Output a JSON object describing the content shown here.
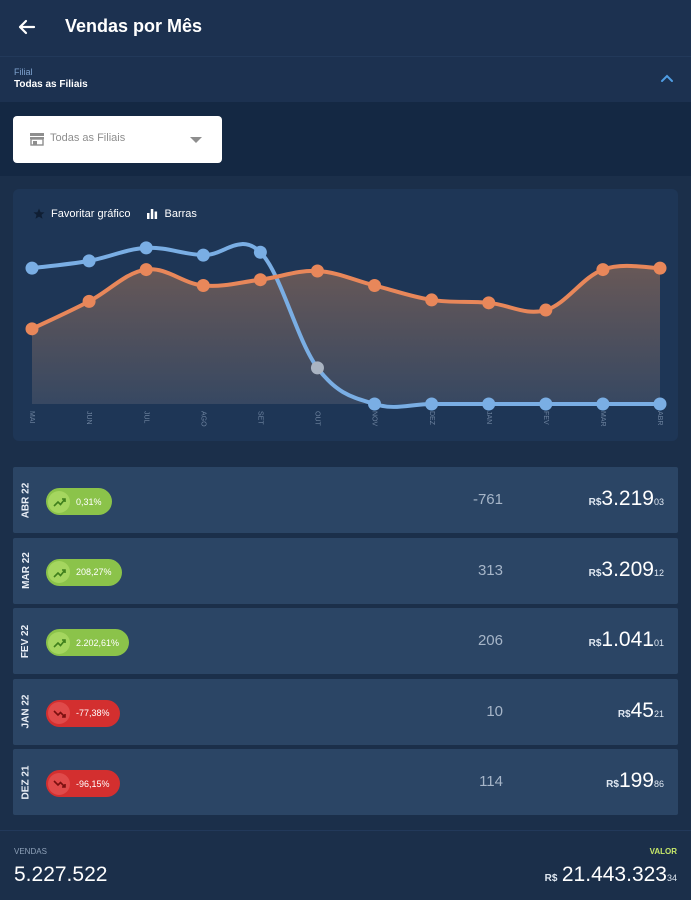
{
  "header": {
    "title": "Vendas por Mês"
  },
  "filter": {
    "caption": "Filial",
    "value": "Todas as Filiais",
    "select_placeholder": "Todas as Filiais"
  },
  "chart_toolbar": {
    "favorite_label": "Favoritar gráfico",
    "bars_label": "Barras"
  },
  "chart_data": {
    "type": "area",
    "categories": [
      "MAI",
      "JUN",
      "JUL",
      "AGO",
      "SET",
      "OUT",
      "NOV",
      "DEZ",
      "JAN",
      "FEV",
      "MAR",
      "ABR"
    ],
    "series": [
      {
        "color": "#e8875a",
        "values": [
          0.52,
          0.71,
          0.93,
          0.82,
          0.86,
          0.92,
          0.82,
          0.72,
          0.7,
          0.65,
          0.93,
          0.94
        ]
      },
      {
        "color": "#7aaee4",
        "values": [
          0.94,
          0.99,
          1.08,
          1.03,
          1.05,
          0.25,
          0.0,
          0.0,
          0.0,
          0.0,
          0.0,
          0.0
        ]
      }
    ],
    "area_color_top": "#6c5a57",
    "area_color_bottom": "#3a4a63",
    "grid": false
  },
  "rows": [
    {
      "month": "ABR 22",
      "trend": "up",
      "pct": "0,31%",
      "qty": "-761",
      "currency": "R$",
      "value": "3.219",
      "cents": "03"
    },
    {
      "month": "MAR 22",
      "trend": "up",
      "pct": "208,27%",
      "qty": "313",
      "currency": "R$",
      "value": "3.209",
      "cents": "12"
    },
    {
      "month": "FEV 22",
      "trend": "up",
      "pct": "2.202,61%",
      "qty": "206",
      "currency": "R$",
      "value": "1.041",
      "cents": "01"
    },
    {
      "month": "JAN 22",
      "trend": "down",
      "pct": "-77,38%",
      "qty": "10",
      "currency": "R$",
      "value": "45",
      "cents": "21"
    },
    {
      "month": "DEZ 21",
      "trend": "down",
      "pct": "-96,15%",
      "qty": "114",
      "currency": "R$",
      "value": "199",
      "cents": "86"
    }
  ],
  "footer": {
    "sales_label": "VENDAS",
    "sales_total": "5.227.522",
    "value_label": "VALOR",
    "currency": "R$",
    "value_total": "21.443.323",
    "value_cents": "34"
  },
  "colors": {
    "up": "#8bc34a",
    "down": "#d32f2f",
    "accent": "#c6e86a"
  }
}
